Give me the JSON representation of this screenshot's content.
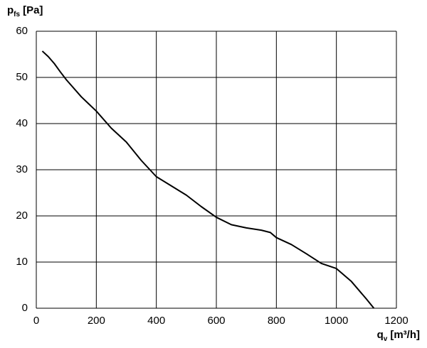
{
  "chart_data": {
    "type": "line",
    "ylabel": {
      "symbol": "p",
      "subscript": "fs",
      "unit": "[Pa]"
    },
    "xlabel": {
      "symbol": "q",
      "subscript": "v",
      "unit": "[m³/h]"
    },
    "x": [
      20,
      40,
      60,
      80,
      100,
      150,
      200,
      250,
      300,
      350,
      400,
      450,
      500,
      550,
      600,
      650,
      700,
      750,
      780,
      800,
      850,
      900,
      950,
      1000,
      1050,
      1100,
      1125
    ],
    "values": [
      55.7,
      54.5,
      53,
      51.2,
      49.5,
      45.8,
      42.7,
      39,
      36,
      32,
      28.5,
      26.5,
      24.5,
      22,
      19.7,
      18.1,
      17.4,
      16.9,
      16.4,
      15.3,
      13.8,
      11.8,
      9.7,
      8.6,
      5.8,
      2,
      0
    ],
    "color": "#000000",
    "xlim": [
      0,
      1200
    ],
    "xticks": [
      0,
      200,
      400,
      600,
      800,
      1000,
      1200
    ],
    "ylim": [
      0,
      60
    ],
    "yticks": [
      0,
      10,
      20,
      30,
      40,
      50,
      60
    ],
    "grid": true
  }
}
